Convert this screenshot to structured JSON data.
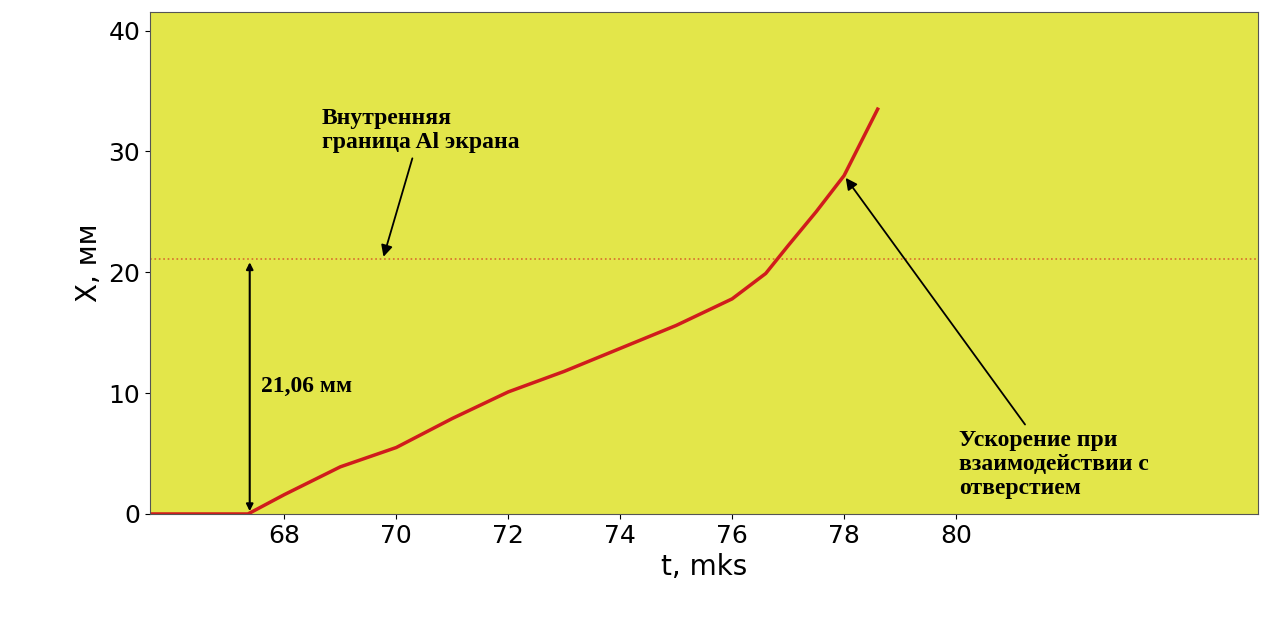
{
  "chart_data": {
    "type": "line",
    "xlabel": "t, mks",
    "ylabel": "X, мм",
    "xlim": [
      65.6,
      85.4
    ],
    "xticks": [
      68,
      70,
      72,
      74,
      76,
      78,
      80
    ],
    "ylim": [
      0,
      41.5
    ],
    "yticks": [
      0,
      10,
      20,
      30,
      40
    ],
    "x": [
      65.6,
      67.35,
      68.0,
      69.0,
      70.0,
      71.0,
      72.0,
      73.0,
      74.0,
      75.0,
      76.0,
      76.6,
      77.0,
      77.5,
      78.0,
      78.6
    ],
    "values": [
      0,
      0,
      1.6,
      3.9,
      5.5,
      7.9,
      10.1,
      11.8,
      13.7,
      15.6,
      17.8,
      19.9,
      22.2,
      25.0,
      28.0,
      33.5
    ],
    "color": "#d01c1c",
    "boundary": {
      "value": 21.06,
      "label": "Внутренняя\nграница Al экрана",
      "dimension_label": "21,06 мм"
    },
    "annotation": "Ускорение при\nвзаимодействии с\nотверстием"
  }
}
